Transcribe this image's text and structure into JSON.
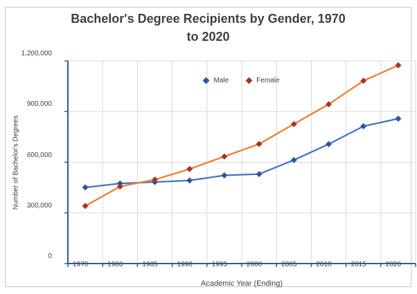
{
  "window": {
    "background_color": "#ffffff",
    "frame_border_color": "#c8c8c8"
  },
  "chart_data": {
    "type": "line",
    "title": "Bachelor's Degree Recipients by Gender, 1970 to 2020",
    "title_lines": [
      "Bachelor's Degree Recipients by Gender, 1970",
      "to 2020"
    ],
    "xlabel": "Academic Year (Ending)",
    "ylabel": "Number of Bachelor's Degrees",
    "categories": [
      "1970",
      "1980",
      "1985",
      "1990",
      "1995",
      "2000",
      "2005",
      "2010",
      "2015",
      "2020"
    ],
    "series": [
      {
        "name": "Male",
        "line_color": "#4472C4",
        "marker_color": "#2F5597",
        "marker_shape": "diamond",
        "values": [
          451000,
          474000,
          483000,
          492000,
          522000,
          530000,
          613000,
          707000,
          813000,
          858000
        ]
      },
      {
        "name": "Female",
        "line_color": "#ED7D31",
        "marker_color": "#A5342A",
        "marker_shape": "diamond",
        "values": [
          341000,
          456000,
          497000,
          560000,
          634000,
          708000,
          826000,
          943000,
          1082000,
          1174000
        ]
      }
    ],
    "ylim": [
      0,
      1200000
    ],
    "y_ticks": [
      {
        "value": 0,
        "label": "0"
      },
      {
        "value": 300000,
        "label": "300,000"
      },
      {
        "value": 600000,
        "label": "600,000"
      },
      {
        "value": 900000,
        "label": "900,000"
      },
      {
        "value": 1200000,
        "label": "1,200,000"
      }
    ],
    "grid": true,
    "legend_position": "top-center",
    "axis_color": "#2D5A9E",
    "gridline_color": "#D9D9D9",
    "text_color": "#404040"
  }
}
